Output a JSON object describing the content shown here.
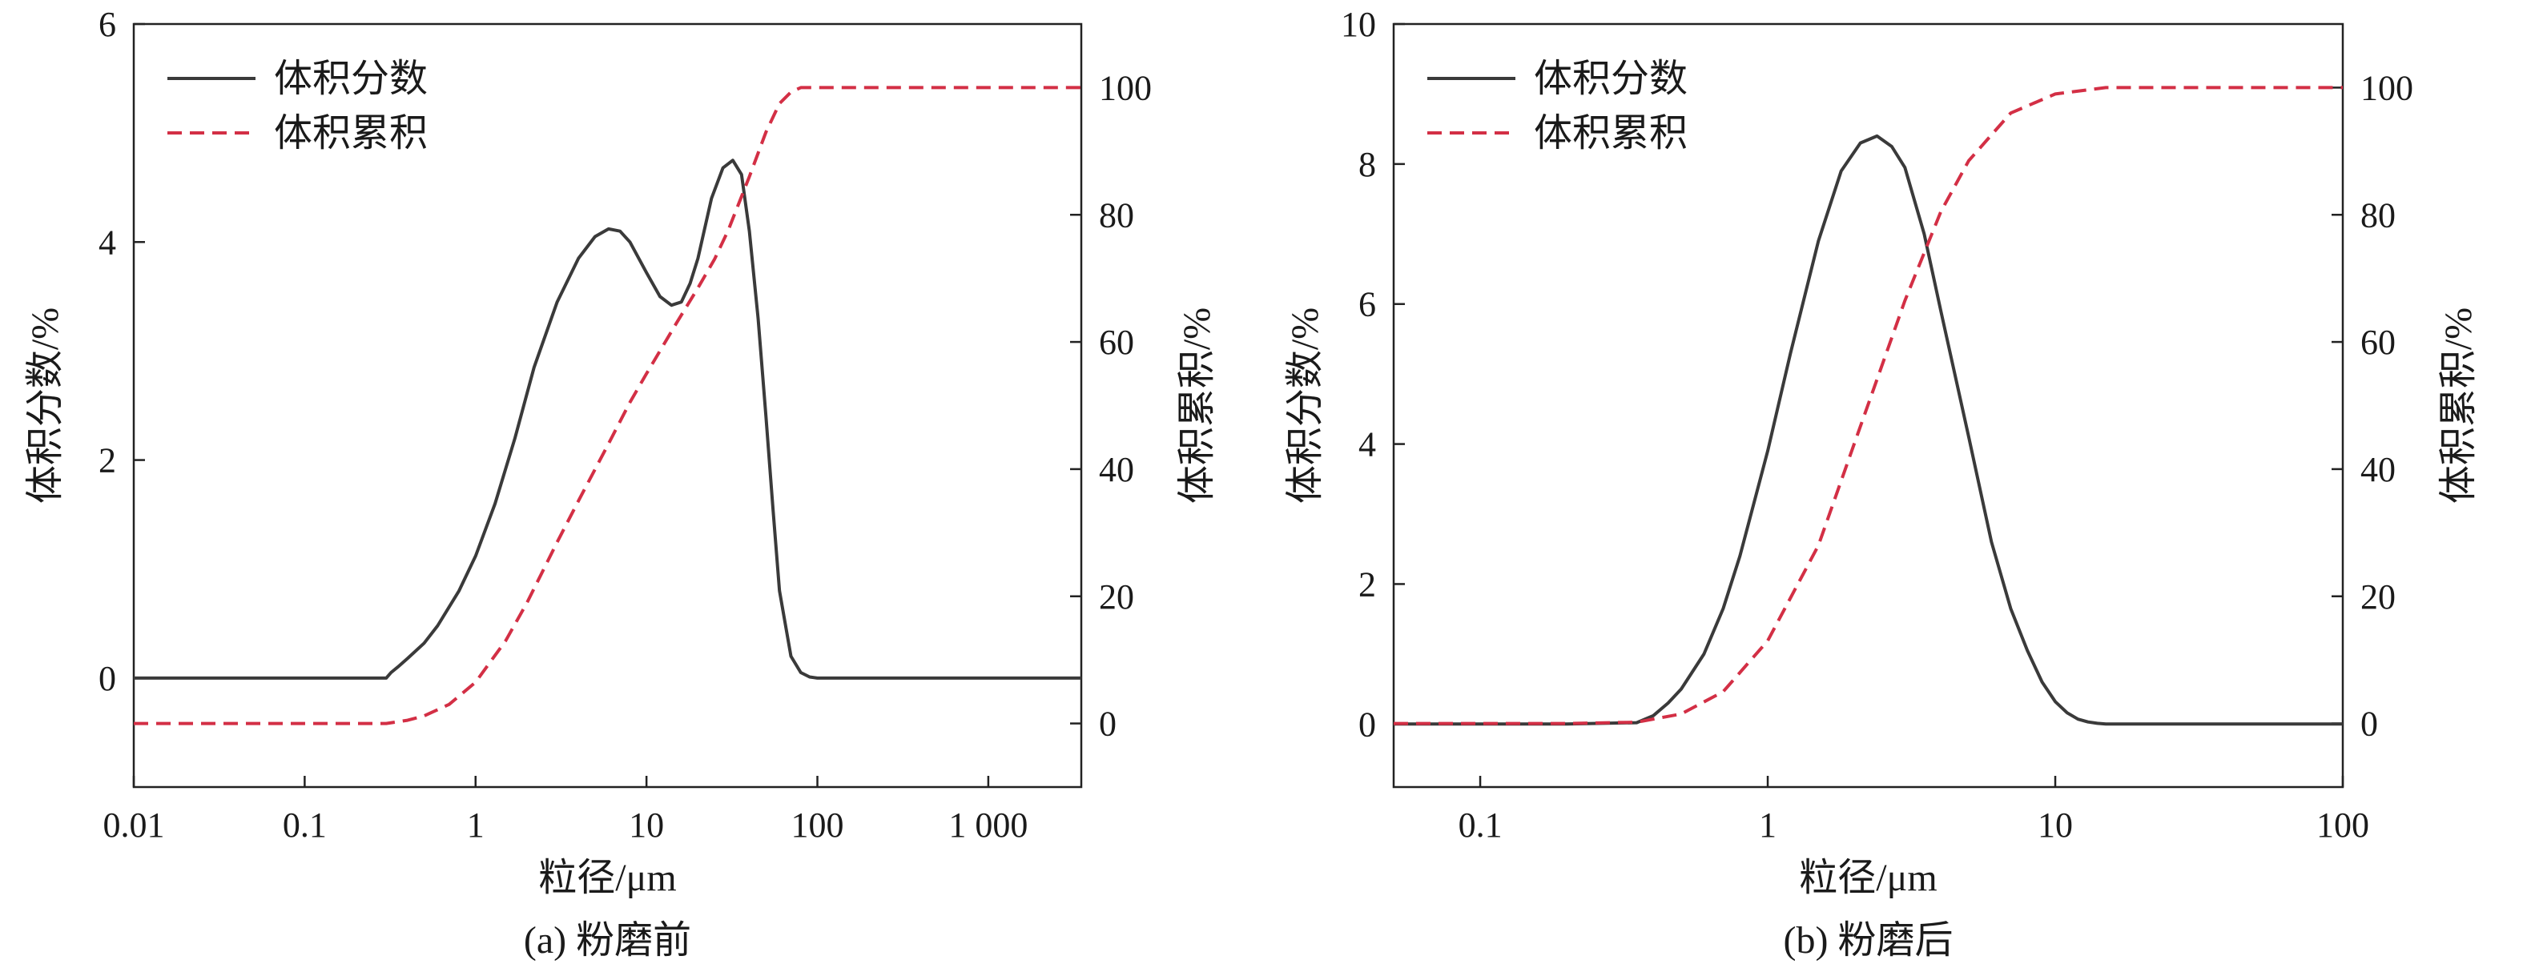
{
  "chart_data": [
    {
      "type": "line",
      "caption": "(a) 粉磨前",
      "xlabel": "粒径/μm",
      "ylabel_left": "体积分数/%",
      "ylabel_right": "体积累积/%",
      "x_scale": "log",
      "xlim": [
        0.01,
        3500
      ],
      "ylim_left": [
        -1,
        6
      ],
      "ylim_right": [
        -10,
        110
      ],
      "x_ticks": [
        0.01,
        0.1,
        1,
        10,
        100,
        1000
      ],
      "x_tick_labels": [
        "0.01",
        "0.1",
        "1",
        "10",
        "100",
        "1 000"
      ],
      "y_left_ticks": [
        0,
        2,
        4,
        6
      ],
      "y_left_tick_labels": [
        "0",
        "2",
        "4",
        "6"
      ],
      "y_right_ticks": [
        0,
        20,
        40,
        60,
        80,
        100
      ],
      "y_right_tick_labels": [
        "0",
        "20",
        "40",
        "60",
        "80",
        "100"
      ],
      "legend_position": "top-left",
      "series": [
        {
          "name": "体积分数",
          "axis": "left",
          "color": "#3a3a3a",
          "style": "solid",
          "x": [
            0.01,
            0.1,
            0.3,
            0.32,
            0.35,
            0.4,
            0.5,
            0.6,
            0.8,
            1,
            1.3,
            1.7,
            2.2,
            3,
            4,
            5,
            6,
            7,
            8,
            10,
            12,
            14,
            16,
            18,
            20,
            24,
            28,
            32,
            36,
            40,
            45,
            50,
            55,
            60,
            70,
            80,
            90,
            100,
            150,
            500,
            3500
          ],
          "y": [
            0,
            0,
            0,
            0.05,
            0.1,
            0.18,
            0.32,
            0.48,
            0.8,
            1.12,
            1.6,
            2.2,
            2.85,
            3.45,
            3.85,
            4.05,
            4.12,
            4.1,
            4.0,
            3.72,
            3.5,
            3.42,
            3.45,
            3.62,
            3.85,
            4.4,
            4.68,
            4.75,
            4.62,
            4.1,
            3.3,
            2.4,
            1.55,
            0.8,
            0.2,
            0.05,
            0.01,
            0,
            0,
            0,
            0
          ]
        },
        {
          "name": "体积累积",
          "axis": "right",
          "color": "#d32f45",
          "style": "dashed",
          "x": [
            0.01,
            0.1,
            0.3,
            0.4,
            0.5,
            0.7,
            1,
            1.5,
            2,
            3,
            4,
            6,
            8,
            10,
            15,
            20,
            25,
            30,
            40,
            50,
            60,
            70,
            80,
            100,
            200,
            3500
          ],
          "y": [
            0,
            0,
            0,
            0.5,
            1.2,
            3,
            6.5,
            13,
            19,
            28.5,
            35,
            44,
            50.5,
            55,
            63,
            68.5,
            73,
            77.5,
            86,
            93,
            97.5,
            99.3,
            100,
            100,
            100,
            100
          ]
        }
      ]
    },
    {
      "type": "line",
      "caption": "(b) 粉磨后",
      "xlabel": "粒径/μm",
      "ylabel_left": "体积分数/%",
      "ylabel_right": "体积累积/%",
      "x_scale": "log",
      "xlim": [
        0.05,
        100
      ],
      "ylim_left": [
        -0.9,
        10
      ],
      "ylim_right": [
        -10,
        110
      ],
      "x_ticks": [
        0.1,
        1,
        10,
        100
      ],
      "x_tick_labels": [
        "0.1",
        "1",
        "10",
        "100"
      ],
      "y_left_ticks": [
        0,
        2,
        4,
        6,
        8,
        10
      ],
      "y_left_tick_labels": [
        "0",
        "2",
        "4",
        "6",
        "8",
        "10"
      ],
      "y_right_ticks": [
        0,
        20,
        40,
        60,
        80,
        100
      ],
      "y_right_tick_labels": [
        "0",
        "20",
        "40",
        "60",
        "80",
        "100"
      ],
      "legend_position": "top-left",
      "series": [
        {
          "name": "体积分数",
          "axis": "left",
          "color": "#3a3a3a",
          "style": "solid",
          "x": [
            0.05,
            0.2,
            0.35,
            0.4,
            0.45,
            0.5,
            0.6,
            0.7,
            0.8,
            1,
            1.2,
            1.5,
            1.8,
            2.1,
            2.4,
            2.7,
            3,
            3.5,
            4,
            5,
            6,
            7,
            8,
            9,
            10,
            11,
            12,
            13,
            14,
            15,
            20,
            50,
            100
          ],
          "y": [
            0,
            0,
            0.02,
            0.12,
            0.3,
            0.5,
            1.0,
            1.65,
            2.4,
            3.9,
            5.3,
            6.9,
            7.9,
            8.3,
            8.4,
            8.25,
            7.95,
            7.0,
            5.9,
            4.1,
            2.6,
            1.65,
            1.05,
            0.6,
            0.32,
            0.16,
            0.07,
            0.03,
            0.01,
            0,
            0,
            0,
            0
          ]
        },
        {
          "name": "体积累积",
          "axis": "right",
          "color": "#d32f45",
          "style": "dashed",
          "x": [
            0.05,
            0.2,
            0.35,
            0.5,
            0.7,
            1,
            1.5,
            2,
            3,
            4,
            5,
            7,
            10,
            15,
            20,
            50,
            100
          ],
          "y": [
            0,
            0,
            0.2,
            1.5,
            5,
            13,
            28,
            44,
            66.5,
            80.5,
            88.5,
            96,
            99,
            100,
            100,
            100,
            100
          ]
        }
      ]
    }
  ]
}
